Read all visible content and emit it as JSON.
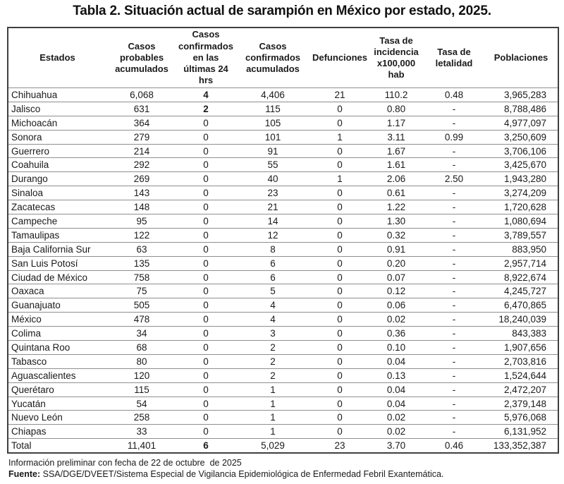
{
  "title": "Tabla 2. Situación actual de sarampión en México por estado, 2025.",
  "colors": {
    "background": "#ffffff",
    "text": "#1a1a1a",
    "border_outer": "#3f3f3f",
    "border_inner": "#8f8f8f"
  },
  "table": {
    "columns": [
      "Estados",
      "Casos\nprobables\nacumulados",
      "Casos\nconfirmados\nen las\núltimas 24\nhrs",
      "Casos\nconfirmados\nacumulados",
      "Defunciones",
      "Tasa de\nincidencia\nx100,000\nhab",
      "Tasa de\nletalidad",
      "Poblaciones"
    ],
    "bold_nonzero_column": 2,
    "rows": [
      [
        "Chihuahua",
        "6,068",
        "4",
        "4,406",
        "21",
        "110.2",
        "0.48",
        "3,965,283"
      ],
      [
        "Jalisco",
        "631",
        "2",
        "115",
        "0",
        "0.80",
        "-",
        "8,788,486"
      ],
      [
        "Michoacán",
        "364",
        "0",
        "105",
        "0",
        "1.17",
        "-",
        "4,977,097"
      ],
      [
        "Sonora",
        "279",
        "0",
        "101",
        "1",
        "3.11",
        "0.99",
        "3,250,609"
      ],
      [
        "Guerrero",
        "214",
        "0",
        "91",
        "0",
        "1.67",
        "-",
        "3,706,106"
      ],
      [
        "Coahuila",
        "292",
        "0",
        "55",
        "0",
        "1.61",
        "-",
        "3,425,670"
      ],
      [
        "Durango",
        "269",
        "0",
        "40",
        "1",
        "2.06",
        "2.50",
        "1,943,280"
      ],
      [
        "Sinaloa",
        "143",
        "0",
        "23",
        "0",
        "0.61",
        "-",
        "3,274,209"
      ],
      [
        "Zacatecas",
        "148",
        "0",
        "21",
        "0",
        "1.22",
        "-",
        "1,720,628"
      ],
      [
        "Campeche",
        "95",
        "0",
        "14",
        "0",
        "1.30",
        "-",
        "1,080,694"
      ],
      [
        "Tamaulipas",
        "122",
        "0",
        "12",
        "0",
        "0.32",
        "-",
        "3,789,557"
      ],
      [
        "Baja California Sur",
        "63",
        "0",
        "8",
        "0",
        "0.91",
        "-",
        "883,950"
      ],
      [
        "San Luis Potosí",
        "135",
        "0",
        "6",
        "0",
        "0.20",
        "-",
        "2,957,714"
      ],
      [
        "Ciudad de México",
        "758",
        "0",
        "6",
        "0",
        "0.07",
        "-",
        "8,922,674"
      ],
      [
        "Oaxaca",
        "75",
        "0",
        "5",
        "0",
        "0.12",
        "-",
        "4,245,727"
      ],
      [
        "Guanajuato",
        "505",
        "0",
        "4",
        "0",
        "0.06",
        "-",
        "6,470,865"
      ],
      [
        "México",
        "478",
        "0",
        "4",
        "0",
        "0.02",
        "-",
        "18,240,039"
      ],
      [
        "Colima",
        "34",
        "0",
        "3",
        "0",
        "0.36",
        "-",
        "843,383"
      ],
      [
        "Quintana Roo",
        "68",
        "0",
        "2",
        "0",
        "0.10",
        "-",
        "1,907,656"
      ],
      [
        "Tabasco",
        "80",
        "0",
        "2",
        "0",
        "0.04",
        "-",
        "2,703,816"
      ],
      [
        "Aguascalientes",
        "120",
        "0",
        "2",
        "0",
        "0.13",
        "-",
        "1,524,644"
      ],
      [
        "Querétaro",
        "115",
        "0",
        "1",
        "0",
        "0.04",
        "-",
        "2,472,207"
      ],
      [
        "Yucatán",
        "54",
        "0",
        "1",
        "0",
        "0.04",
        "-",
        "2,379,148"
      ],
      [
        "Nuevo León",
        "258",
        "0",
        "1",
        "0",
        "0.02",
        "-",
        "5,976,068"
      ],
      [
        "Chiapas",
        "33",
        "0",
        "1",
        "0",
        "0.02",
        "-",
        "6,131,952"
      ]
    ],
    "total_row": [
      "Total",
      "11,401",
      "6",
      "5,029",
      "23",
      "3.70",
      "0.46",
      "133,352,387"
    ]
  },
  "footer": {
    "line1": "Información preliminar con fecha de 22 de octubre  de 2025",
    "fuente_label": "Fuente:",
    "fuente_text": " SSA/DGE/DVEET/Sistema Especial de Vigilancia Epidemiológica de Enfermedad Febril Exantemática."
  }
}
